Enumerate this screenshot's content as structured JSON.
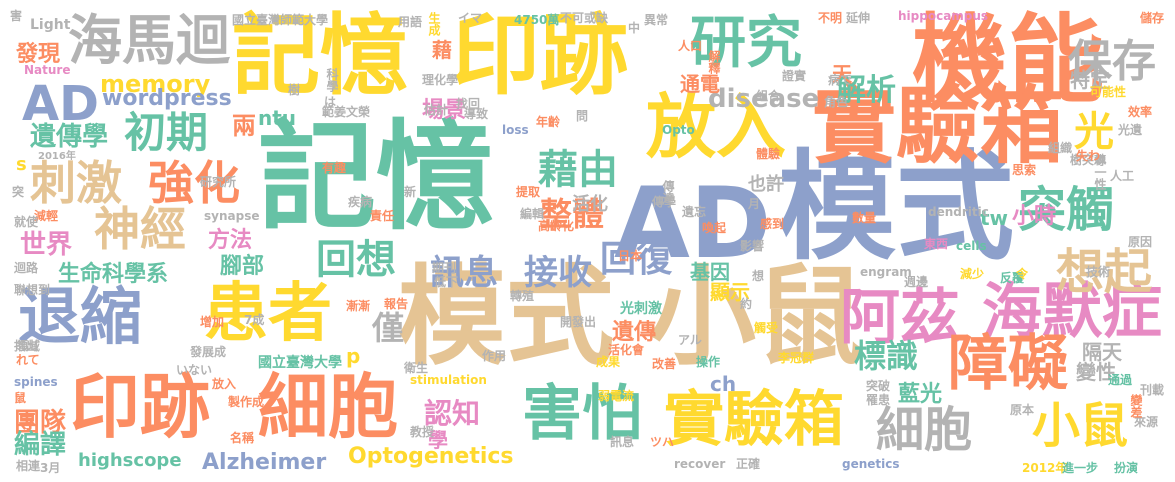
{
  "palette": {
    "yellow": "#FFD92F",
    "green": "#66C2A5",
    "orange": "#FC8D62",
    "blue": "#8DA0CB",
    "pink": "#E78AC3",
    "lime": "#A6D854",
    "tan": "#E5C494",
    "gray": "#B3B3B3"
  },
  "words": [
    {
      "text": "記憶",
      "color": "green"
    },
    {
      "text": "AD",
      "color": "blue"
    },
    {
      "text": "模式",
      "color": "blue"
    },
    {
      "text": "模式",
      "color": "tan"
    },
    {
      "text": "小鼠",
      "color": "tan"
    },
    {
      "text": "記憶",
      "color": "yellow"
    },
    {
      "text": "印跡",
      "color": "yellow"
    },
    {
      "text": "機能",
      "color": "orange"
    },
    {
      "text": "實驗箱",
      "color": "orange"
    },
    {
      "text": "放入",
      "color": "yellow"
    },
    {
      "text": "研究",
      "color": "green"
    },
    {
      "text": "海馬迴",
      "color": "gray"
    },
    {
      "text": "退縮",
      "color": "blue"
    },
    {
      "text": "印跡",
      "color": "orange"
    },
    {
      "text": "細胞",
      "color": "orange"
    },
    {
      "text": "患者",
      "color": "yellow"
    },
    {
      "text": "害怕",
      "color": "green"
    },
    {
      "text": "實驗箱",
      "color": "yellow"
    },
    {
      "text": "阿茲",
      "color": "pink"
    },
    {
      "text": "海默症",
      "color": "pink"
    },
    {
      "text": "障礙",
      "color": "orange"
    },
    {
      "text": "細胞",
      "color": "gray"
    },
    {
      "text": "小鼠",
      "color": "yellow"
    },
    {
      "text": "突觸",
      "color": "green"
    },
    {
      "text": "想起",
      "color": "tan"
    },
    {
      "text": "保存",
      "color": "gray"
    },
    {
      "text": "AD",
      "color": "blue"
    },
    {
      "text": "初期",
      "color": "green"
    },
    {
      "text": "刺激",
      "color": "tan"
    },
    {
      "text": "強化",
      "color": "orange"
    },
    {
      "text": "神經",
      "color": "tan"
    },
    {
      "text": "藉由",
      "color": "green"
    },
    {
      "text": "回想",
      "color": "green"
    },
    {
      "text": "回復",
      "color": "blue"
    },
    {
      "text": "接收",
      "color": "blue"
    },
    {
      "text": "訊息",
      "color": "blue"
    },
    {
      "text": "整體",
      "color": "orange"
    },
    {
      "text": "標識",
      "color": "green"
    },
    {
      "text": "僅",
      "color": "gray"
    },
    {
      "text": "解析",
      "color": "green"
    },
    {
      "text": "光",
      "color": "yellow"
    },
    {
      "text": "memory",
      "color": "yellow"
    },
    {
      "text": "disease",
      "color": "gray"
    },
    {
      "text": "wordpress",
      "color": "blue"
    },
    {
      "text": "遺傳學",
      "color": "green"
    },
    {
      "text": "世界",
      "color": "pink"
    },
    {
      "text": "生命科學系",
      "color": "green"
    },
    {
      "text": "Alzheimer",
      "color": "blue"
    },
    {
      "text": "Optogenetics",
      "color": "yellow"
    },
    {
      "text": "highscope",
      "color": "green"
    },
    {
      "text": "團隊",
      "color": "orange"
    },
    {
      "text": "編譯",
      "color": "green"
    },
    {
      "text": "發現",
      "color": "orange"
    },
    {
      "text": "認知",
      "color": "pink"
    },
    {
      "text": "學",
      "color": "pink"
    },
    {
      "text": "基因",
      "color": "green"
    },
    {
      "text": "顯示",
      "color": "yellow"
    },
    {
      "text": "小時",
      "color": "pink"
    },
    {
      "text": "特定",
      "color": "gray"
    },
    {
      "text": "變性",
      "color": "gray"
    },
    {
      "text": "隔天",
      "color": "gray"
    },
    {
      "text": "藍光",
      "color": "green"
    },
    {
      "text": "遺傳",
      "color": "orange"
    },
    {
      "text": "方法",
      "color": "pink"
    },
    {
      "text": "腳部",
      "color": "green"
    },
    {
      "text": "場景",
      "color": "pink"
    },
    {
      "text": "通電",
      "color": "orange"
    },
    {
      "text": "也許",
      "color": "gray"
    },
    {
      "text": "活化",
      "color": "gray"
    },
    {
      "text": "ntu",
      "color": "green"
    },
    {
      "text": "兩",
      "color": "orange"
    },
    {
      "text": "天",
      "color": "orange"
    },
    {
      "text": "ch",
      "color": "blue"
    },
    {
      "text": "tw",
      "color": "green"
    },
    {
      "text": "p",
      "color": "yellow"
    },
    {
      "text": "s",
      "color": "yellow"
    },
    {
      "text": "藉",
      "color": "orange"
    },
    {
      "text": "Light",
      "color": "gray"
    },
    {
      "text": "Nature",
      "color": "pink"
    },
    {
      "text": "國立臺灣師範大學",
      "color": "gray"
    },
    {
      "text": "用語",
      "color": "gray"
    },
    {
      "text": "生成",
      "color": "yellow"
    },
    {
      "text": "イマ",
      "color": "gray"
    },
    {
      "text": "4750萬",
      "color": "green"
    },
    {
      "text": "不可或缺",
      "color": "gray"
    },
    {
      "text": "異常",
      "color": "gray"
    },
    {
      "text": "不明",
      "color": "orange"
    },
    {
      "text": "延伸",
      "color": "gray"
    },
    {
      "text": "hippocampus",
      "color": "pink"
    },
    {
      "text": "儲存",
      "color": "orange"
    },
    {
      "text": "2016年",
      "color": "gray"
    },
    {
      "text": "synapse",
      "color": "gray"
    },
    {
      "text": "dendritic",
      "color": "gray"
    },
    {
      "text": "cells",
      "color": "green"
    },
    {
      "text": "engram",
      "color": "gray"
    },
    {
      "text": "stimulation",
      "color": "yellow"
    },
    {
      "text": "recover",
      "color": "gray"
    },
    {
      "text": "genetics",
      "color": "blue"
    },
    {
      "text": "loss",
      "color": "blue"
    },
    {
      "text": "spines",
      "color": "blue"
    },
    {
      "text": "國立臺灣大學",
      "color": "green"
    },
    {
      "text": "2012年",
      "color": "yellow"
    },
    {
      "text": "進一步",
      "color": "green"
    },
    {
      "text": "扮演",
      "color": "green"
    },
    {
      "text": "來源",
      "color": "gray"
    },
    {
      "text": "原本",
      "color": "gray"
    },
    {
      "text": "原因",
      "color": "gray"
    },
    {
      "text": "技術",
      "color": "gray"
    },
    {
      "text": "李冠群",
      "color": "yellow"
    },
    {
      "text": "光刺激",
      "color": "green"
    },
    {
      "text": "弱電流",
      "color": "yellow"
    },
    {
      "text": "活化會",
      "color": "orange"
    },
    {
      "text": "成果",
      "color": "yellow"
    },
    {
      "text": "改善",
      "color": "orange"
    },
    {
      "text": "操作",
      "color": "green"
    },
    {
      "text": "作用",
      "color": "gray"
    },
    {
      "text": "衛生",
      "color": "gray"
    },
    {
      "text": "教授",
      "color": "gray"
    },
    {
      "text": "報告",
      "color": "orange"
    },
    {
      "text": "漸漸",
      "color": "orange"
    },
    {
      "text": "轉殖",
      "color": "gray"
    },
    {
      "text": "開發出",
      "color": "gray"
    },
    {
      "text": "範姜文榮",
      "color": "gray"
    },
    {
      "text": "導致",
      "color": "gray"
    },
    {
      "text": "期刊",
      "color": "gray"
    },
    {
      "text": "低下",
      "color": "gray"
    },
    {
      "text": "高齡化",
      "color": "orange"
    },
    {
      "text": "日本",
      "color": "orange"
    },
    {
      "text": "傳達",
      "color": "gray"
    },
    {
      "text": "遺忘",
      "color": "gray"
    },
    {
      "text": "喚起",
      "color": "orange"
    },
    {
      "text": "感到",
      "color": "orange"
    },
    {
      "text": "影響",
      "color": "gray"
    },
    {
      "text": "數量",
      "color": "orange"
    },
    {
      "text": "東西",
      "color": "pink"
    },
    {
      "text": "減少",
      "color": "yellow"
    },
    {
      "text": "反覆",
      "color": "green"
    },
    {
      "text": "週邊",
      "color": "gray"
    },
    {
      "text": "正確",
      "color": "gray"
    },
    {
      "text": "突破",
      "color": "gray"
    },
    {
      "text": "罹患",
      "color": "gray"
    },
    {
      "text": "通過",
      "color": "green"
    },
    {
      "text": "刊載",
      "color": "gray"
    },
    {
      "text": "變差",
      "color": "orange"
    },
    {
      "text": "組織",
      "color": "gray"
    },
    {
      "text": "思索",
      "color": "orange"
    },
    {
      "text": "樹突棘",
      "color": "gray"
    },
    {
      "text": "效率",
      "color": "orange"
    },
    {
      "text": "光遺",
      "color": "gray"
    },
    {
      "text": "可能性",
      "color": "yellow"
    },
    {
      "text": "角色",
      "color": "gray"
    },
    {
      "text": "組合",
      "color": "gray"
    },
    {
      "text": "證實",
      "color": "gray"
    },
    {
      "text": "病で",
      "color": "gray"
    },
    {
      "text": "人口",
      "color": "orange"
    },
    {
      "text": "理化學",
      "color": "gray"
    },
    {
      "text": "科學",
      "color": "gray"
    },
    {
      "text": "估計",
      "color": "gray"
    },
    {
      "text": "有趣",
      "color": "orange"
    },
    {
      "text": "研究所",
      "color": "gray"
    },
    {
      "text": "減輕",
      "color": "orange"
    },
    {
      "text": "就使",
      "color": "gray"
    },
    {
      "text": "迴路",
      "color": "gray"
    },
    {
      "text": "聯想到",
      "color": "gray"
    },
    {
      "text": "指出",
      "color": "gray"
    },
    {
      "text": "鼠",
      "color": "orange"
    },
    {
      "text": "相連",
      "color": "gray"
    },
    {
      "text": "3月",
      "color": "gray"
    },
    {
      "text": "訊息",
      "color": "gray"
    },
    {
      "text": "名稱",
      "color": "orange"
    },
    {
      "text": "製作成",
      "color": "orange"
    },
    {
      "text": "放入",
      "color": "orange"
    },
    {
      "text": "いない",
      "color": "gray"
    },
    {
      "text": "發展成",
      "color": "gray"
    },
    {
      "text": "增加",
      "color": "orange"
    },
    {
      "text": "7成",
      "color": "gray"
    },
    {
      "text": "れて",
      "color": "orange"
    },
    {
      "text": "領域",
      "color": "gray"
    },
    {
      "text": "疾病",
      "color": "gray"
    },
    {
      "text": "責任",
      "color": "orange"
    },
    {
      "text": "提取",
      "color": "orange"
    },
    {
      "text": "編輯",
      "color": "gray"
    },
    {
      "text": "傳學",
      "color": "gray"
    },
    {
      "text": "アル",
      "color": "gray"
    },
    {
      "text": "觸受",
      "color": "yellow"
    },
    {
      "text": "體驗",
      "color": "orange"
    },
    {
      "text": "年齡",
      "color": "orange"
    },
    {
      "text": "解釋",
      "color": "orange"
    },
    {
      "text": "找回",
      "color": "gray"
    },
    {
      "text": "Opto",
      "color": "green"
    },
    {
      "text": "問",
      "color": "gray"
    },
    {
      "text": "中",
      "color": "gray"
    },
    {
      "text": "月",
      "color": "gray"
    },
    {
      "text": "想",
      "color": "gray"
    },
    {
      "text": "約",
      "color": "gray"
    },
    {
      "text": "人工",
      "color": "gray"
    },
    {
      "text": "專一性",
      "color": "gray"
    },
    {
      "text": "失わ",
      "color": "orange"
    },
    {
      "text": "令",
      "color": "yellow"
    },
    {
      "text": "ツハ",
      "color": "orange"
    },
    {
      "text": "は",
      "color": "gray"
    },
    {
      "text": "樹",
      "color": "gray"
    },
    {
      "text": "新",
      "color": "gray"
    },
    {
      "text": "突",
      "color": "gray"
    },
    {
      "text": "害",
      "color": "gray"
    }
  ]
}
